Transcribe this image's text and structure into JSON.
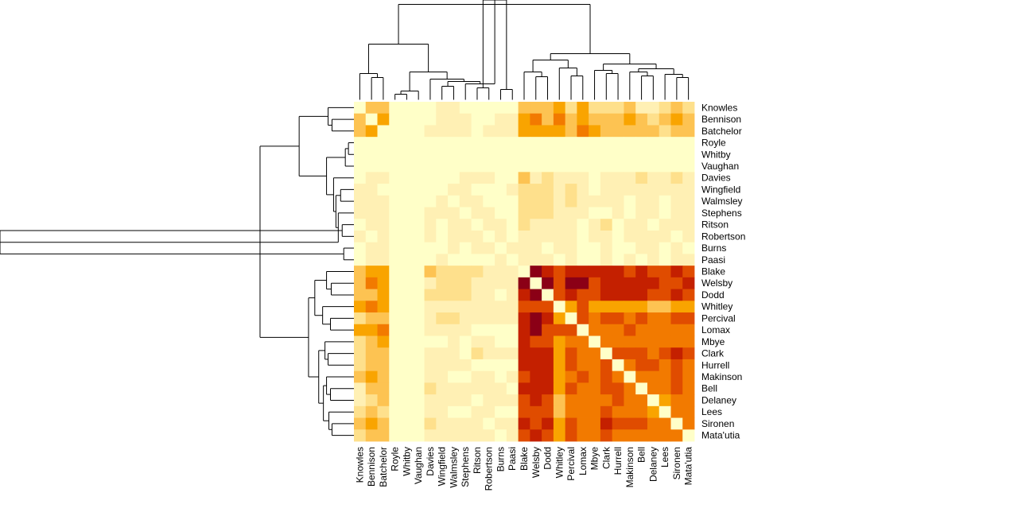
{
  "chart_data": {
    "type": "heatmap",
    "columns": [
      "Knowles",
      "Bennison",
      "Batchelor",
      "Royle",
      "Whitby",
      "Vaughan",
      "Davies",
      "Wingfield",
      "Walmsley",
      "Stephens",
      "Ritson",
      "Robertson",
      "Burns",
      "Paasi",
      "Blake",
      "Welsby",
      "Dodd",
      "Whitley",
      "Percival",
      "Lomax",
      "Mbye",
      "Clark",
      "Hurrell",
      "Makinson",
      "Bell",
      "Delaney",
      "Lees",
      "Sironen",
      "Mata'utia"
    ],
    "rows": [
      "Knowles",
      "Bennison",
      "Batchelor",
      "Royle",
      "Whitby",
      "Vaughan",
      "Davies",
      "Wingfield",
      "Walmsley",
      "Stephens",
      "Ritson",
      "Robertson",
      "Burns",
      "Paasi",
      "Blake",
      "Welsby",
      "Dodd",
      "Whitley",
      "Percival",
      "Lomax",
      "Mbye",
      "Clark",
      "Hurrell",
      "Makinson",
      "Bell",
      "Delaney",
      "Lees",
      "Sironen",
      "Mata'utia"
    ],
    "colors": [
      "#ffffc8",
      "#fff0b4",
      "#fee08c",
      "#fdc352",
      "#f9a400",
      "#f27a00",
      "#e04c00",
      "#c42000",
      "#8b0016"
    ],
    "values": [
      [
        0,
        3,
        3,
        0,
        0,
        0,
        0,
        1,
        1,
        0,
        0,
        0,
        0,
        0,
        3,
        3,
        3,
        4,
        2,
        4,
        2,
        2,
        2,
        3,
        1,
        1,
        2,
        3,
        2
      ],
      [
        3,
        0,
        4,
        0,
        0,
        0,
        0,
        1,
        1,
        1,
        0,
        0,
        1,
        1,
        4,
        5,
        3,
        5,
        3,
        4,
        3,
        3,
        3,
        4,
        3,
        2,
        3,
        4,
        3
      ],
      [
        3,
        4,
        0,
        0,
        0,
        0,
        1,
        1,
        1,
        1,
        0,
        1,
        1,
        1,
        4,
        4,
        4,
        4,
        3,
        5,
        4,
        3,
        3,
        3,
        3,
        3,
        2,
        3,
        3
      ],
      [
        0,
        0,
        0,
        0,
        0,
        0,
        0,
        0,
        0,
        0,
        0,
        0,
        0,
        0,
        0,
        0,
        0,
        0,
        0,
        0,
        0,
        0,
        0,
        0,
        0,
        0,
        0,
        0,
        0
      ],
      [
        0,
        0,
        0,
        0,
        0,
        0,
        0,
        0,
        0,
        0,
        0,
        0,
        0,
        0,
        0,
        0,
        0,
        0,
        0,
        0,
        0,
        0,
        0,
        0,
        0,
        0,
        0,
        0,
        0
      ],
      [
        0,
        0,
        0,
        0,
        0,
        0,
        0,
        0,
        0,
        0,
        0,
        0,
        0,
        0,
        0,
        0,
        0,
        0,
        0,
        0,
        0,
        0,
        0,
        0,
        0,
        0,
        0,
        0,
        0
      ],
      [
        0,
        1,
        1,
        0,
        0,
        0,
        0,
        0,
        0,
        1,
        1,
        1,
        0,
        0,
        3,
        1,
        2,
        1,
        1,
        1,
        0,
        1,
        1,
        1,
        2,
        1,
        1,
        2,
        1
      ],
      [
        1,
        1,
        0,
        0,
        0,
        0,
        0,
        0,
        1,
        1,
        0,
        0,
        0,
        1,
        2,
        2,
        2,
        1,
        2,
        1,
        0,
        1,
        1,
        1,
        1,
        1,
        1,
        1,
        1
      ],
      [
        1,
        1,
        1,
        0,
        0,
        0,
        0,
        1,
        0,
        1,
        1,
        0,
        0,
        0,
        2,
        2,
        2,
        1,
        2,
        1,
        1,
        1,
        1,
        0,
        1,
        1,
        0,
        1,
        1
      ],
      [
        1,
        1,
        1,
        0,
        0,
        0,
        1,
        1,
        1,
        0,
        1,
        1,
        0,
        0,
        2,
        2,
        2,
        1,
        1,
        1,
        0,
        0,
        1,
        0,
        1,
        1,
        0,
        1,
        1
      ],
      [
        0,
        1,
        1,
        0,
        0,
        0,
        1,
        0,
        1,
        1,
        0,
        1,
        1,
        0,
        2,
        1,
        1,
        1,
        1,
        0,
        1,
        2,
        0,
        1,
        1,
        0,
        1,
        1,
        1
      ],
      [
        1,
        0,
        1,
        0,
        0,
        0,
        1,
        0,
        1,
        1,
        1,
        0,
        1,
        0,
        1,
        1,
        1,
        1,
        1,
        0,
        1,
        1,
        0,
        1,
        1,
        1,
        1,
        0,
        1
      ],
      [
        0,
        1,
        1,
        0,
        0,
        0,
        0,
        0,
        1,
        0,
        1,
        1,
        0,
        1,
        1,
        1,
        0,
        1,
        1,
        0,
        0,
        1,
        0,
        0,
        1,
        1,
        0,
        1,
        0
      ],
      [
        0,
        1,
        1,
        0,
        0,
        0,
        0,
        1,
        0,
        0,
        0,
        0,
        1,
        0,
        1,
        1,
        1,
        0,
        1,
        0,
        0,
        1,
        0,
        1,
        0,
        1,
        0,
        1,
        1
      ],
      [
        3,
        4,
        4,
        0,
        0,
        0,
        3,
        2,
        2,
        2,
        2,
        1,
        1,
        1,
        0,
        8,
        7,
        6,
        7,
        7,
        7,
        7,
        7,
        6,
        7,
        6,
        6,
        7,
        6
      ],
      [
        3,
        5,
        4,
        0,
        0,
        0,
        1,
        2,
        2,
        2,
        1,
        1,
        1,
        1,
        8,
        0,
        8,
        6,
        8,
        8,
        6,
        7,
        7,
        7,
        7,
        7,
        6,
        6,
        7
      ],
      [
        3,
        3,
        4,
        0,
        0,
        0,
        2,
        2,
        2,
        2,
        1,
        1,
        0,
        1,
        7,
        8,
        0,
        6,
        7,
        6,
        6,
        7,
        7,
        7,
        7,
        6,
        6,
        7,
        6
      ],
      [
        4,
        5,
        4,
        0,
        0,
        0,
        1,
        1,
        1,
        1,
        1,
        1,
        1,
        1,
        6,
        6,
        6,
        0,
        4,
        6,
        4,
        4,
        4,
        4,
        4,
        3,
        3,
        4,
        4
      ],
      [
        2,
        3,
        3,
        0,
        0,
        0,
        1,
        2,
        2,
        1,
        1,
        1,
        1,
        1,
        7,
        8,
        7,
        4,
        0,
        6,
        5,
        6,
        6,
        5,
        6,
        5,
        5,
        6,
        6
      ],
      [
        4,
        4,
        5,
        0,
        0,
        0,
        1,
        1,
        1,
        1,
        0,
        0,
        0,
        0,
        7,
        8,
        6,
        6,
        6,
        0,
        5,
        5,
        5,
        6,
        5,
        5,
        5,
        5,
        5
      ],
      [
        2,
        3,
        4,
        0,
        0,
        0,
        0,
        0,
        1,
        0,
        1,
        1,
        0,
        0,
        7,
        6,
        6,
        4,
        5,
        5,
        0,
        5,
        5,
        5,
        5,
        5,
        5,
        5,
        5
      ],
      [
        2,
        3,
        3,
        0,
        0,
        0,
        1,
        1,
        1,
        0,
        2,
        1,
        1,
        1,
        7,
        7,
        7,
        4,
        6,
        5,
        5,
        0,
        6,
        6,
        6,
        5,
        6,
        7,
        6
      ],
      [
        2,
        3,
        3,
        0,
        0,
        0,
        1,
        1,
        1,
        1,
        0,
        0,
        0,
        0,
        7,
        7,
        7,
        4,
        6,
        5,
        5,
        6,
        0,
        5,
        6,
        6,
        5,
        6,
        5
      ],
      [
        3,
        4,
        3,
        0,
        0,
        0,
        1,
        1,
        0,
        0,
        1,
        1,
        0,
        1,
        6,
        7,
        7,
        4,
        5,
        6,
        5,
        6,
        5,
        0,
        5,
        5,
        5,
        6,
        5
      ],
      [
        1,
        3,
        3,
        0,
        0,
        0,
        2,
        1,
        1,
        1,
        1,
        1,
        1,
        0,
        7,
        7,
        7,
        4,
        6,
        5,
        5,
        6,
        6,
        5,
        0,
        5,
        5,
        6,
        5
      ],
      [
        1,
        2,
        3,
        0,
        0,
        0,
        1,
        1,
        1,
        1,
        0,
        1,
        1,
        1,
        6,
        7,
        6,
        3,
        5,
        5,
        5,
        5,
        6,
        5,
        5,
        0,
        4,
        5,
        5
      ],
      [
        2,
        3,
        2,
        0,
        0,
        0,
        1,
        1,
        0,
        0,
        1,
        1,
        0,
        0,
        6,
        6,
        6,
        3,
        5,
        5,
        5,
        6,
        5,
        5,
        5,
        4,
        0,
        5,
        5
      ],
      [
        3,
        4,
        3,
        0,
        0,
        0,
        2,
        1,
        1,
        1,
        1,
        0,
        1,
        1,
        7,
        6,
        7,
        4,
        6,
        5,
        5,
        7,
        6,
        6,
        6,
        5,
        5,
        0,
        5
      ],
      [
        2,
        3,
        3,
        0,
        0,
        0,
        1,
        1,
        1,
        1,
        1,
        1,
        0,
        1,
        6,
        7,
        6,
        4,
        6,
        5,
        5,
        6,
        5,
        5,
        5,
        5,
        5,
        5,
        0
      ]
    ]
  }
}
